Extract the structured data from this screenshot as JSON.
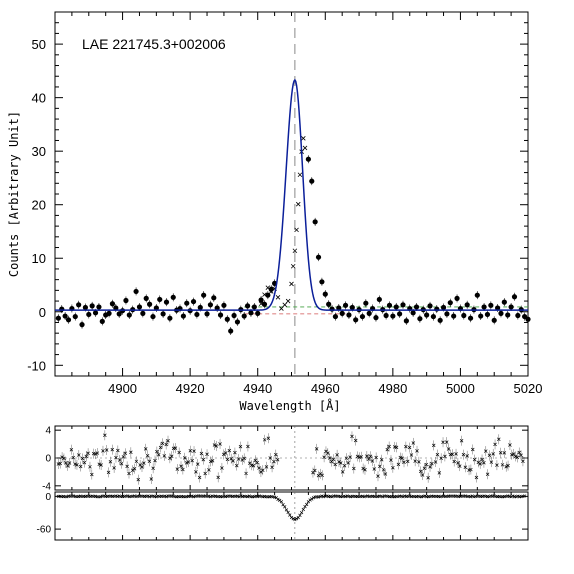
{
  "chart_data": [
    {
      "type": "scatter",
      "title": "",
      "annotation": "LAE 221745.3+002006",
      "xlabel": "Wavelength [Å]",
      "ylabel": "Counts [Arbitrary Unit]",
      "xlim": [
        4880,
        5020
      ],
      "ylim": [
        -12,
        56
      ],
      "xticks": [
        4900,
        4920,
        4940,
        4960,
        4980,
        5000,
        5020
      ],
      "yticks": [
        -10,
        0,
        10,
        20,
        30,
        40,
        50
      ],
      "x_tick_labels": [
        "4900",
        "4920",
        "4940",
        "4960",
        "4980",
        "5000",
        "5020"
      ],
      "y_tick_labels": [
        "-10",
        "0",
        "10",
        "20",
        "30",
        "40",
        "50"
      ],
      "line_center": 4951,
      "fit_model": {
        "amplitude": 43,
        "center": 4951,
        "sigma_blue": 2.6,
        "sigma_red": 2.3,
        "continuum": 0.3
      },
      "series": [
        {
          "marker": "filled-circle",
          "x": [
            4881,
            4882,
            4883,
            4884,
            4885,
            4886,
            4887,
            4888,
            4889,
            4890,
            4891,
            4892,
            4893,
            4894,
            4895,
            4896,
            4897,
            4898,
            4899,
            4900,
            4901,
            4902,
            4903,
            4904,
            4905,
            4906,
            4907,
            4908,
            4909,
            4910,
            4911,
            4912,
            4913,
            4914,
            4915,
            4916,
            4917,
            4918,
            4919,
            4920,
            4921,
            4922,
            4923,
            4924,
            4925,
            4926,
            4927,
            4928,
            4929,
            4930,
            4931,
            4932,
            4933,
            4934,
            4935,
            4936,
            4937,
            4938,
            4939,
            4940,
            4941,
            4942,
            4943,
            4944,
            4945,
            4955,
            4956,
            4957,
            4958,
            4959,
            4960,
            4961,
            4962,
            4963,
            4964,
            4965,
            4966,
            4967,
            4968,
            4969,
            4970,
            4971,
            4972,
            4973,
            4974,
            4975,
            4976,
            4977,
            4978,
            4979,
            4980,
            4981,
            4982,
            4983,
            4984,
            4985,
            4986,
            4987,
            4988,
            4989,
            4990,
            4991,
            4992,
            4993,
            4994,
            4995,
            4996,
            4997,
            4998,
            4999,
            5000,
            5001,
            5002,
            5003,
            5004,
            5005,
            5006,
            5007,
            5008,
            5009,
            5010,
            5011,
            5012,
            5013,
            5014,
            5015,
            5016,
            5017,
            5018,
            5019,
            5020
          ],
          "y": [
            -1.2,
            0.5,
            -0.8,
            -1.5,
            0.6,
            -0.9,
            1.3,
            -2.4,
            0.8,
            -0.5,
            1.1,
            -0.2,
            0.9,
            -1.8,
            -0.6,
            -0.3,
            1.5,
            0.7,
            -0.4,
            0.2,
            2.1,
            -0.6,
            0.4,
            3.8,
            0.9,
            -0.3,
            2.5,
            1.4,
            -0.9,
            0.7,
            2.3,
            -0.4,
            1.8,
            -1.2,
            2.7,
            0.3,
            0.6,
            -0.8,
            1.6,
            0.2,
            1.9,
            -0.5,
            0.8,
            3.1,
            -0.4,
            1.3,
            2.6,
            0.7,
            -0.6,
            1.2,
            -1.4,
            -3.6,
            -0.7,
            -1.9,
            0.4,
            -0.8,
            1.1,
            -0.2,
            0.9,
            -0.3,
            2.2,
            1.4,
            3.1,
            4.2,
            5.3,
            28.5,
            24.4,
            16.8,
            10.2,
            5.6,
            3.3,
            1.4,
            0.5,
            -0.9,
            0.7,
            -0.3,
            1.2,
            -0.6,
            0.8,
            -1.5,
            0.4,
            -0.9,
            1.6,
            -0.3,
            0.6,
            -1.1,
            2.3,
            0.4,
            -0.7,
            1.2,
            -0.8,
            0.9,
            -0.4,
            1.3,
            -1.7,
            0.6,
            -0.2,
            0.9,
            -1.3,
            0.4,
            -0.6,
            1.1,
            -0.9,
            0.5,
            -1.6,
            0.8,
            -0.4,
            1.7,
            -0.8,
            2.5,
            0.6,
            -0.7,
            1.3,
            -1.2,
            0.4,
            3.1,
            -0.8,
            0.9,
            -0.5,
            1.2,
            -1.6,
            0.7,
            -0.3,
            1.8,
            -0.6,
            0.9,
            2.8,
            -0.7,
            0.4,
            -0.9,
            -1.4
          ]
        },
        {
          "marker": "cross",
          "x": [
            4941,
            4942,
            4943,
            4944,
            4945,
            4946,
            4947,
            4948,
            4949,
            4950,
            4950.5,
            4951,
            4951.5,
            4952,
            4952.5,
            4953,
            4953.5,
            4954
          ],
          "y": [
            1.5,
            3.2,
            4.5,
            3.8,
            4.3,
            2.7,
            0.6,
            1.3,
            2.0,
            5.2,
            8.5,
            11.4,
            15.3,
            20.1,
            25.6,
            29.9,
            32.4,
            30.6
          ]
        }
      ]
    },
    {
      "type": "scatter",
      "panel": "residual",
      "xlim": [
        4880,
        5020
      ],
      "ylim": [
        -4.6,
        4.6
      ],
      "yticks": [
        -4,
        0,
        4
      ],
      "y_tick_labels": [
        "-4",
        "0",
        "4"
      ],
      "gap": [
        4946,
        4956
      ]
    },
    {
      "type": "line",
      "panel": "bottom",
      "xlim": [
        4880,
        5020
      ],
      "ylim": [
        -80,
        8
      ],
      "yticks": [
        -60,
        0
      ],
      "y_tick_labels": [
        "-60",
        "0"
      ],
      "dip": {
        "center": 4951,
        "depth": -42,
        "sigma": 2.4
      }
    }
  ]
}
